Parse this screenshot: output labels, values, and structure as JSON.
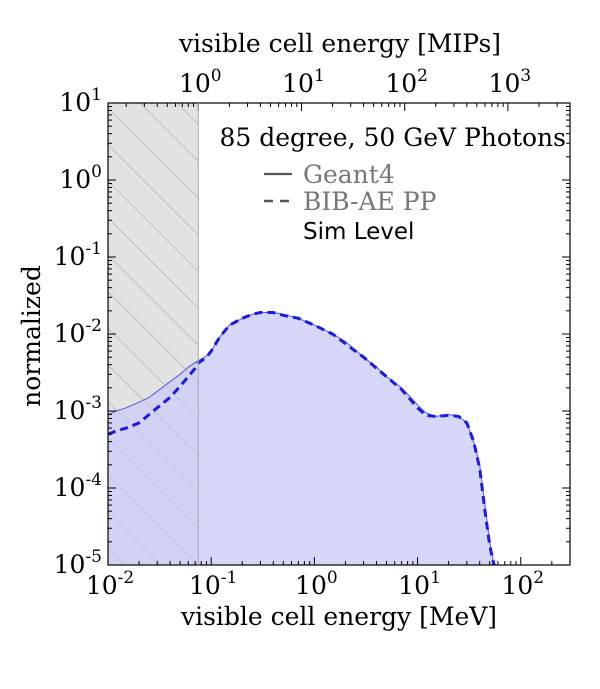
{
  "chart_data": {
    "type": "area",
    "title": "85 degree, 50 GeV Photons",
    "xlabel": "visible cell energy [MeV]",
    "xlabel_top": "visible cell energy [MIPs]",
    "ylabel": "normalized",
    "xscale": "log",
    "yscale": "log",
    "xlim": [
      0.01,
      300
    ],
    "ylim": [
      1e-05,
      10
    ],
    "x_ticks": [
      {
        "value": 0.01,
        "base": "10",
        "exp": "-2"
      },
      {
        "value": 0.1,
        "base": "10",
        "exp": "-1"
      },
      {
        "value": 1,
        "base": "10",
        "exp": "0"
      },
      {
        "value": 10,
        "base": "10",
        "exp": "1"
      },
      {
        "value": 100,
        "base": "10",
        "exp": "2"
      }
    ],
    "x_ticks_top": [
      {
        "value": 1,
        "base": "10",
        "exp": "0"
      },
      {
        "value": 10,
        "base": "10",
        "exp": "1"
      },
      {
        "value": 100,
        "base": "10",
        "exp": "2"
      },
      {
        "value": 1000,
        "base": "10",
        "exp": "3"
      }
    ],
    "mip_mev": 0.075,
    "y_ticks": [
      {
        "value": 1e-05,
        "base": "10",
        "exp": "-5"
      },
      {
        "value": 0.0001,
        "base": "10",
        "exp": "-4"
      },
      {
        "value": 0.001,
        "base": "10",
        "exp": "-3"
      },
      {
        "value": 0.01,
        "base": "10",
        "exp": "-2"
      },
      {
        "value": 0.1,
        "base": "10",
        "exp": "-1"
      },
      {
        "value": 1,
        "base": "10",
        "exp": "0"
      },
      {
        "value": 10,
        "base": "10",
        "exp": "1"
      }
    ],
    "hatched_region": [
      0.01,
      0.075
    ],
    "annotation": "Sim Level",
    "legend_position": "upper-right",
    "colors": {
      "geant4_fill": "#cfd0f7",
      "geant4_line": "#5558dd",
      "bib_line": "#1a1ae6",
      "hatch_fill": "#e2e2e2",
      "hatch_line": "#a9a9a9",
      "legend_text": "#777777",
      "legend_line": "#555555"
    },
    "series": [
      {
        "name": "Geant4",
        "style": "solid-filled",
        "x": [
          0.01,
          0.012,
          0.015,
          0.02,
          0.025,
          0.03,
          0.04,
          0.05,
          0.06,
          0.075,
          0.09,
          0.1,
          0.12,
          0.15,
          0.2,
          0.25,
          0.3,
          0.4,
          0.5,
          0.7,
          1,
          1.5,
          2,
          3,
          4,
          5,
          7,
          10,
          12,
          15,
          20,
          25,
          30,
          35,
          40,
          45,
          50,
          55,
          57
        ],
        "y": [
          0.0009,
          0.001,
          0.0011,
          0.0013,
          0.0015,
          0.0018,
          0.0024,
          0.003,
          0.0037,
          0.0045,
          0.0052,
          0.006,
          0.009,
          0.013,
          0.016,
          0.018,
          0.019,
          0.019,
          0.018,
          0.016,
          0.013,
          0.01,
          0.008,
          0.005,
          0.0037,
          0.0028,
          0.002,
          0.0012,
          0.00095,
          0.00085,
          0.0009,
          0.00085,
          0.0007,
          0.0004,
          0.0002,
          6e-05,
          2e-05,
          1e-05,
          1e-05
        ]
      },
      {
        "name": "BIB-AE PP",
        "style": "dashed",
        "x": [
          0.01,
          0.012,
          0.015,
          0.02,
          0.025,
          0.03,
          0.04,
          0.05,
          0.06,
          0.07,
          0.075,
          0.09,
          0.1,
          0.12,
          0.15,
          0.2,
          0.25,
          0.3,
          0.4,
          0.5,
          0.7,
          1,
          1.5,
          2,
          3,
          4,
          5,
          7,
          10,
          12,
          15,
          20,
          25,
          30,
          35,
          40,
          45,
          50,
          55,
          57
        ],
        "y": [
          0.0005,
          0.00055,
          0.0006,
          0.0007,
          0.0009,
          0.0011,
          0.0015,
          0.0021,
          0.0028,
          0.0036,
          0.0042,
          0.005,
          0.006,
          0.009,
          0.013,
          0.016,
          0.018,
          0.019,
          0.019,
          0.0175,
          0.016,
          0.013,
          0.01,
          0.0075,
          0.005,
          0.0036,
          0.0028,
          0.0019,
          0.0011,
          0.00088,
          0.00085,
          0.00088,
          0.00085,
          0.0007,
          0.0004,
          0.00018,
          5e-05,
          1.8e-05,
          1e-05,
          1e-05
        ]
      }
    ]
  }
}
